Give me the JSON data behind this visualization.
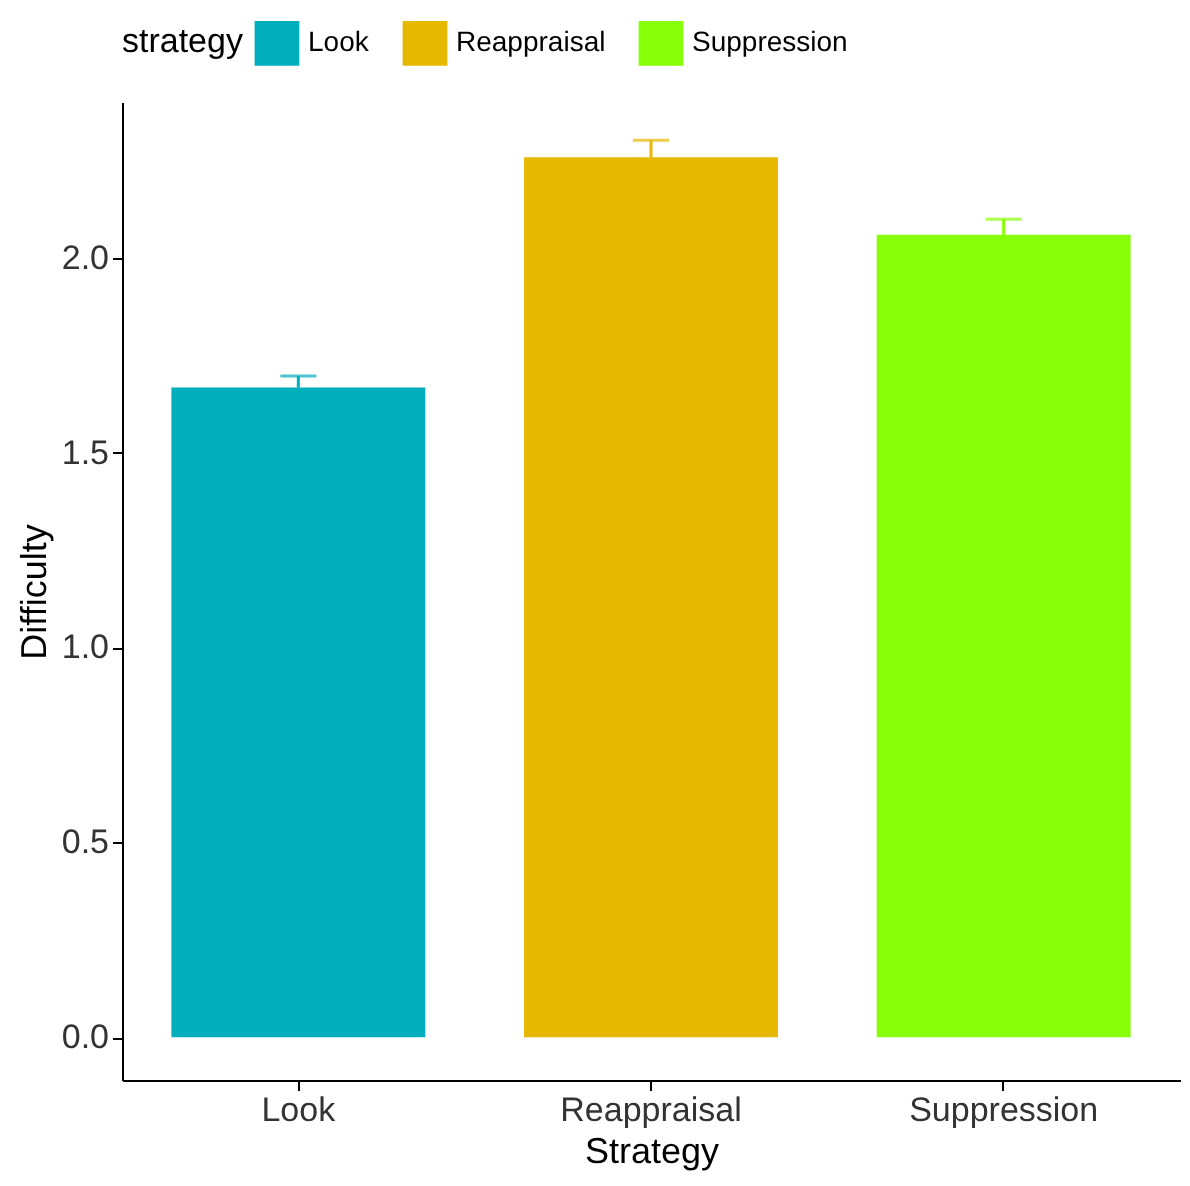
{
  "chart_data": {
    "type": "bar",
    "xlabel": "Strategy",
    "ylabel": "Difficulty",
    "legend_title": "strategy",
    "legend": "top",
    "categories": [
      "Look",
      "Reappraisal",
      "Suppression"
    ],
    "series": [
      {
        "name": "Look",
        "color": "#00afbb",
        "values": [
          1.667,
          null,
          null
        ],
        "errors": [
          0.03,
          null,
          null
        ]
      },
      {
        "name": "Reappraisal",
        "color": "#e7b800",
        "values": [
          null,
          2.258,
          null
        ],
        "errors": [
          null,
          0.044,
          null
        ]
      },
      {
        "name": "Suppression",
        "color": "#87ff07",
        "values": [
          null,
          null,
          2.059
        ],
        "errors": [
          null,
          null,
          0.04
        ]
      }
    ],
    "ylim": [
      -0.11,
      2.4
    ],
    "yticks": [
      {
        "value": 0,
        "label": "0.0"
      },
      {
        "value": 0.5,
        "label": "0.5"
      },
      {
        "value": 1,
        "label": "1.0"
      },
      {
        "value": 1.5,
        "label": "1.5"
      },
      {
        "value": 2,
        "label": "2.0"
      }
    ],
    "grid": false
  }
}
